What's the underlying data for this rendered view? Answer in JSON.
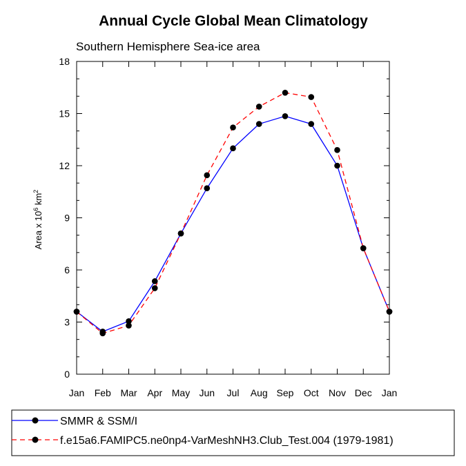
{
  "chart_data": {
    "type": "line",
    "title": "Annual Cycle Global Mean Climatology",
    "subtitle": "Southern Hemisphere Sea-ice area",
    "ylabel": {
      "prefix": "Area x 10",
      "exp": "6",
      "unit": " km",
      "unit_exp": "2"
    },
    "xlabel": "",
    "categories": [
      "Jan",
      "Feb",
      "Mar",
      "Apr",
      "May",
      "Jun",
      "Jul",
      "Aug",
      "Sep",
      "Oct",
      "Nov",
      "Dec",
      "Jan"
    ],
    "ylim": [
      0,
      18
    ],
    "yticks": [
      0,
      3,
      6,
      9,
      12,
      15,
      18
    ],
    "grid": false,
    "legend_position": "bottom",
    "series": [
      {
        "name": "SMMR & SSM/I",
        "color": "#0000ff",
        "dash": "solid",
        "marker": "filled-circle",
        "values": [
          3.6,
          2.45,
          3.05,
          5.35,
          8.1,
          10.7,
          13.0,
          14.4,
          14.85,
          14.4,
          12.0,
          7.25,
          3.6
        ]
      },
      {
        "name": "f.e15a6.FAMIPC5.ne0np4-VarMeshNH3.Club_Test.004 (1979-1981)",
        "color": "#ff0000",
        "dash": "dashed",
        "marker": "filled-circle",
        "values": [
          3.6,
          2.35,
          2.8,
          4.95,
          8.1,
          11.45,
          14.2,
          15.4,
          16.2,
          15.95,
          12.9,
          7.25,
          3.6
        ]
      }
    ]
  }
}
